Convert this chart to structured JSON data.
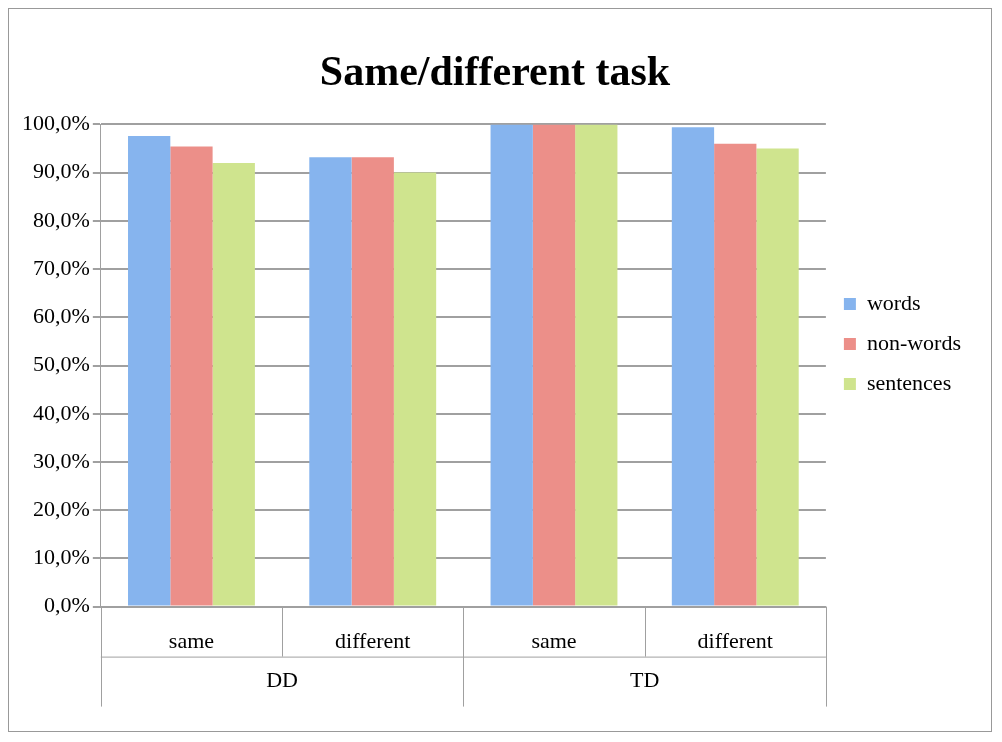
{
  "chart_data": {
    "type": "bar",
    "title": "Same/different task",
    "categories": [
      "same",
      "different",
      "same",
      "different"
    ],
    "annotations": [
      "DD",
      "TD"
    ],
    "series": [
      {
        "name": "words",
        "color": "#86b4ee",
        "values": [
          97.6,
          93.2,
          100,
          99.4
        ]
      },
      {
        "name": "non-words",
        "color": "#ec8f89",
        "values": [
          95.4,
          93.2,
          100,
          96.0
        ]
      },
      {
        "name": "sentences",
        "color": "#cfe48e",
        "values": [
          92.0,
          90.0,
          100,
          95.0
        ]
      }
    ],
    "ylim": [
      0,
      100
    ],
    "yticks": [
      {
        "value": 0,
        "label": "0,0%"
      },
      {
        "value": 10,
        "label": "10,0%"
      },
      {
        "value": 20,
        "label": "20,0%"
      },
      {
        "value": 30,
        "label": "30,0%"
      },
      {
        "value": 40,
        "label": "40,0%"
      },
      {
        "value": 50,
        "label": "50,0%"
      },
      {
        "value": 60,
        "label": "60,0%"
      },
      {
        "value": 70,
        "label": "70,0%"
      },
      {
        "value": 80,
        "label": "80,0%"
      },
      {
        "value": 90,
        "label": "90,0%"
      },
      {
        "value": 100,
        "label": "100,0%"
      }
    ],
    "grid": "y",
    "legend": "right"
  }
}
